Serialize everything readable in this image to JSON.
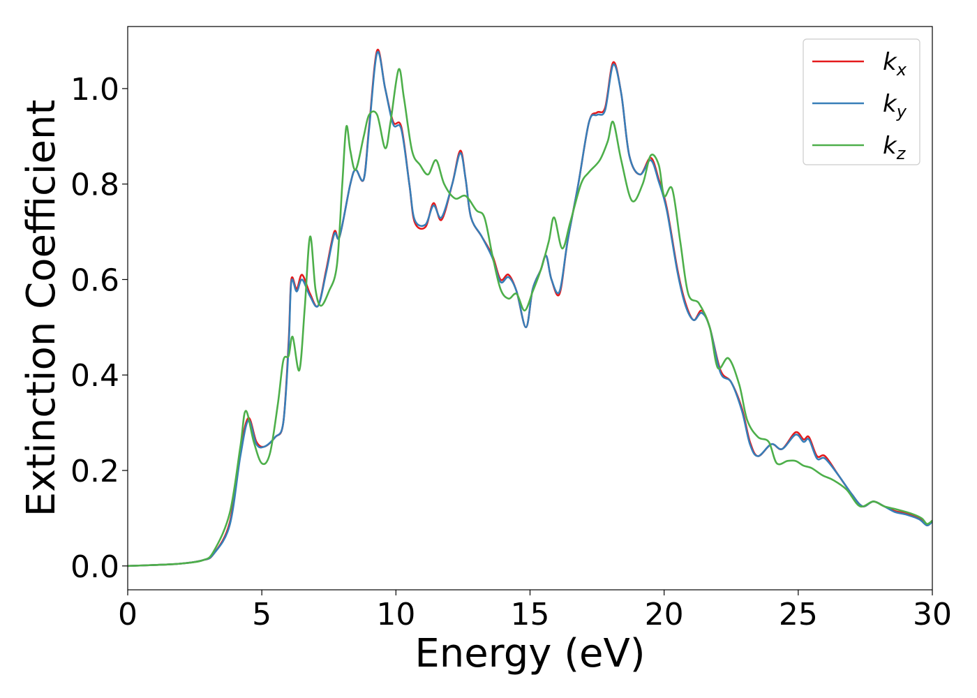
{
  "chart_data": {
    "type": "line",
    "title": "",
    "xlabel": "Energy (eV)",
    "ylabel": "Extinction Coefficient",
    "xlim": [
      0,
      30
    ],
    "ylim": [
      -0.05,
      1.13
    ],
    "xticks": [
      0,
      5,
      10,
      15,
      20,
      25,
      30
    ],
    "xtick_labels": [
      "0",
      "5",
      "10",
      "15",
      "20",
      "25",
      "30"
    ],
    "yticks": [
      0.0,
      0.2,
      0.4,
      0.6,
      0.8,
      1.0
    ],
    "ytick_labels": [
      "0.0",
      "0.2",
      "0.4",
      "0.6",
      "0.8",
      "1.0"
    ],
    "grid": false,
    "legend_position": "top-right",
    "series": [
      {
        "name": "k",
        "subscript": "x",
        "color": "#e41a1c",
        "points": [
          [
            0,
            0
          ],
          [
            1,
            0.002
          ],
          [
            2,
            0.005
          ],
          [
            2.8,
            0.012
          ],
          [
            3.2,
            0.025
          ],
          [
            3.8,
            0.09
          ],
          [
            4.2,
            0.24
          ],
          [
            4.5,
            0.31
          ],
          [
            4.8,
            0.26
          ],
          [
            5.1,
            0.25
          ],
          [
            5.5,
            0.27
          ],
          [
            5.8,
            0.3
          ],
          [
            6.0,
            0.47
          ],
          [
            6.1,
            0.6
          ],
          [
            6.3,
            0.58
          ],
          [
            6.5,
            0.61
          ],
          [
            6.8,
            0.57
          ],
          [
            7.1,
            0.545
          ],
          [
            7.4,
            0.62
          ],
          [
            7.7,
            0.7
          ],
          [
            7.9,
            0.69
          ],
          [
            8.3,
            0.8
          ],
          [
            8.5,
            0.83
          ],
          [
            8.8,
            0.81
          ],
          [
            9.0,
            0.92
          ],
          [
            9.3,
            1.08
          ],
          [
            9.6,
            1.0
          ],
          [
            9.9,
            0.93
          ],
          [
            10.2,
            0.92
          ],
          [
            10.5,
            0.8
          ],
          [
            10.7,
            0.72
          ],
          [
            11.1,
            0.71
          ],
          [
            11.4,
            0.76
          ],
          [
            11.7,
            0.725
          ],
          [
            12.1,
            0.8
          ],
          [
            12.4,
            0.87
          ],
          [
            12.6,
            0.81
          ],
          [
            12.8,
            0.73
          ],
          [
            13.2,
            0.69
          ],
          [
            13.6,
            0.65
          ],
          [
            13.9,
            0.6
          ],
          [
            14.2,
            0.61
          ],
          [
            14.5,
            0.575
          ],
          [
            14.85,
            0.5
          ],
          [
            15.1,
            0.58
          ],
          [
            15.4,
            0.62
          ],
          [
            15.6,
            0.65
          ],
          [
            15.8,
            0.6
          ],
          [
            16.1,
            0.57
          ],
          [
            16.4,
            0.68
          ],
          [
            16.8,
            0.8
          ],
          [
            17.2,
            0.93
          ],
          [
            17.5,
            0.95
          ],
          [
            17.8,
            0.96
          ],
          [
            18.1,
            1.055
          ],
          [
            18.4,
            0.99
          ],
          [
            18.7,
            0.86
          ],
          [
            19.1,
            0.82
          ],
          [
            19.5,
            0.855
          ],
          [
            19.8,
            0.81
          ],
          [
            20.1,
            0.75
          ],
          [
            20.5,
            0.62
          ],
          [
            20.8,
            0.55
          ],
          [
            21.1,
            0.515
          ],
          [
            21.4,
            0.535
          ],
          [
            21.7,
            0.5
          ],
          [
            22.1,
            0.41
          ],
          [
            22.5,
            0.385
          ],
          [
            22.9,
            0.33
          ],
          [
            23.2,
            0.26
          ],
          [
            23.5,
            0.23
          ],
          [
            24.0,
            0.255
          ],
          [
            24.4,
            0.245
          ],
          [
            24.9,
            0.28
          ],
          [
            25.2,
            0.265
          ],
          [
            25.4,
            0.27
          ],
          [
            25.7,
            0.23
          ],
          [
            26.0,
            0.23
          ],
          [
            26.5,
            0.19
          ],
          [
            27.0,
            0.15
          ],
          [
            27.4,
            0.125
          ],
          [
            27.8,
            0.135
          ],
          [
            28.2,
            0.125
          ],
          [
            28.6,
            0.115
          ],
          [
            29.0,
            0.11
          ],
          [
            29.5,
            0.1
          ],
          [
            29.8,
            0.085
          ],
          [
            30,
            0.095
          ]
        ]
      },
      {
        "name": "k",
        "subscript": "y",
        "color": "#377eb8",
        "points": [
          [
            0,
            0
          ],
          [
            1,
            0.002
          ],
          [
            2,
            0.005
          ],
          [
            2.8,
            0.012
          ],
          [
            3.2,
            0.025
          ],
          [
            3.8,
            0.085
          ],
          [
            4.2,
            0.23
          ],
          [
            4.5,
            0.305
          ],
          [
            4.8,
            0.255
          ],
          [
            5.1,
            0.25
          ],
          [
            5.5,
            0.27
          ],
          [
            5.8,
            0.3
          ],
          [
            6.0,
            0.46
          ],
          [
            6.1,
            0.595
          ],
          [
            6.3,
            0.575
          ],
          [
            6.5,
            0.6
          ],
          [
            6.8,
            0.565
          ],
          [
            7.1,
            0.545
          ],
          [
            7.4,
            0.615
          ],
          [
            7.7,
            0.695
          ],
          [
            7.9,
            0.69
          ],
          [
            8.3,
            0.8
          ],
          [
            8.5,
            0.83
          ],
          [
            8.8,
            0.81
          ],
          [
            9.0,
            0.915
          ],
          [
            9.3,
            1.075
          ],
          [
            9.6,
            1.0
          ],
          [
            9.9,
            0.925
          ],
          [
            10.2,
            0.915
          ],
          [
            10.5,
            0.8
          ],
          [
            10.7,
            0.725
          ],
          [
            11.1,
            0.715
          ],
          [
            11.4,
            0.755
          ],
          [
            11.7,
            0.73
          ],
          [
            12.1,
            0.8
          ],
          [
            12.4,
            0.865
          ],
          [
            12.6,
            0.81
          ],
          [
            12.8,
            0.73
          ],
          [
            13.2,
            0.69
          ],
          [
            13.6,
            0.645
          ],
          [
            13.9,
            0.595
          ],
          [
            14.2,
            0.605
          ],
          [
            14.5,
            0.575
          ],
          [
            14.85,
            0.5
          ],
          [
            15.1,
            0.58
          ],
          [
            15.4,
            0.62
          ],
          [
            15.6,
            0.65
          ],
          [
            15.8,
            0.6
          ],
          [
            16.1,
            0.575
          ],
          [
            16.4,
            0.68
          ],
          [
            16.8,
            0.8
          ],
          [
            17.2,
            0.93
          ],
          [
            17.5,
            0.945
          ],
          [
            17.8,
            0.955
          ],
          [
            18.1,
            1.05
          ],
          [
            18.4,
            0.99
          ],
          [
            18.7,
            0.86
          ],
          [
            19.1,
            0.82
          ],
          [
            19.5,
            0.85
          ],
          [
            19.8,
            0.805
          ],
          [
            20.1,
            0.745
          ],
          [
            20.5,
            0.615
          ],
          [
            20.8,
            0.545
          ],
          [
            21.1,
            0.515
          ],
          [
            21.4,
            0.53
          ],
          [
            21.7,
            0.5
          ],
          [
            22.1,
            0.405
          ],
          [
            22.5,
            0.385
          ],
          [
            22.9,
            0.325
          ],
          [
            23.2,
            0.255
          ],
          [
            23.5,
            0.23
          ],
          [
            24.0,
            0.255
          ],
          [
            24.4,
            0.245
          ],
          [
            24.9,
            0.275
          ],
          [
            25.2,
            0.26
          ],
          [
            25.4,
            0.265
          ],
          [
            25.7,
            0.225
          ],
          [
            26.0,
            0.225
          ],
          [
            26.5,
            0.19
          ],
          [
            27.0,
            0.15
          ],
          [
            27.4,
            0.125
          ],
          [
            27.8,
            0.135
          ],
          [
            28.2,
            0.125
          ],
          [
            28.6,
            0.113
          ],
          [
            29.0,
            0.108
          ],
          [
            29.5,
            0.098
          ],
          [
            29.8,
            0.085
          ],
          [
            30,
            0.093
          ]
        ]
      },
      {
        "name": "k",
        "subscript": "z",
        "color": "#4daf4a",
        "points": [
          [
            0,
            0
          ],
          [
            1,
            0.002
          ],
          [
            2,
            0.005
          ],
          [
            2.8,
            0.012
          ],
          [
            3.2,
            0.03
          ],
          [
            3.8,
            0.11
          ],
          [
            4.2,
            0.25
          ],
          [
            4.4,
            0.325
          ],
          [
            4.7,
            0.26
          ],
          [
            5.0,
            0.215
          ],
          [
            5.3,
            0.235
          ],
          [
            5.6,
            0.34
          ],
          [
            5.8,
            0.43
          ],
          [
            6.0,
            0.44
          ],
          [
            6.15,
            0.48
          ],
          [
            6.4,
            0.41
          ],
          [
            6.6,
            0.54
          ],
          [
            6.8,
            0.69
          ],
          [
            7.0,
            0.58
          ],
          [
            7.2,
            0.545
          ],
          [
            7.5,
            0.575
          ],
          [
            7.8,
            0.63
          ],
          [
            8.0,
            0.8
          ],
          [
            8.15,
            0.92
          ],
          [
            8.3,
            0.87
          ],
          [
            8.5,
            0.83
          ],
          [
            8.8,
            0.9
          ],
          [
            9.0,
            0.945
          ],
          [
            9.3,
            0.945
          ],
          [
            9.6,
            0.875
          ],
          [
            9.8,
            0.93
          ],
          [
            10.1,
            1.04
          ],
          [
            10.3,
            0.98
          ],
          [
            10.6,
            0.87
          ],
          [
            10.9,
            0.84
          ],
          [
            11.2,
            0.82
          ],
          [
            11.5,
            0.85
          ],
          [
            11.8,
            0.8
          ],
          [
            12.2,
            0.77
          ],
          [
            12.6,
            0.775
          ],
          [
            13.0,
            0.745
          ],
          [
            13.3,
            0.73
          ],
          [
            13.6,
            0.65
          ],
          [
            13.9,
            0.58
          ],
          [
            14.2,
            0.56
          ],
          [
            14.5,
            0.57
          ],
          [
            14.8,
            0.535
          ],
          [
            15.1,
            0.575
          ],
          [
            15.4,
            0.62
          ],
          [
            15.7,
            0.68
          ],
          [
            15.9,
            0.73
          ],
          [
            16.2,
            0.665
          ],
          [
            16.5,
            0.72
          ],
          [
            16.9,
            0.8
          ],
          [
            17.2,
            0.825
          ],
          [
            17.6,
            0.85
          ],
          [
            17.9,
            0.89
          ],
          [
            18.1,
            0.93
          ],
          [
            18.4,
            0.85
          ],
          [
            18.8,
            0.765
          ],
          [
            19.2,
            0.8
          ],
          [
            19.5,
            0.86
          ],
          [
            19.8,
            0.84
          ],
          [
            20.0,
            0.775
          ],
          [
            20.3,
            0.79
          ],
          [
            20.6,
            0.68
          ],
          [
            20.9,
            0.57
          ],
          [
            21.3,
            0.55
          ],
          [
            21.7,
            0.5
          ],
          [
            22.0,
            0.415
          ],
          [
            22.4,
            0.435
          ],
          [
            22.8,
            0.38
          ],
          [
            23.1,
            0.305
          ],
          [
            23.5,
            0.27
          ],
          [
            23.9,
            0.26
          ],
          [
            24.2,
            0.215
          ],
          [
            24.6,
            0.22
          ],
          [
            24.9,
            0.22
          ],
          [
            25.2,
            0.21
          ],
          [
            25.5,
            0.205
          ],
          [
            25.9,
            0.19
          ],
          [
            26.3,
            0.18
          ],
          [
            26.8,
            0.16
          ],
          [
            27.3,
            0.125
          ],
          [
            27.8,
            0.135
          ],
          [
            28.2,
            0.125
          ],
          [
            28.7,
            0.118
          ],
          [
            29.2,
            0.11
          ],
          [
            29.6,
            0.1
          ],
          [
            29.8,
            0.088
          ],
          [
            30,
            0.095
          ]
        ]
      }
    ]
  }
}
